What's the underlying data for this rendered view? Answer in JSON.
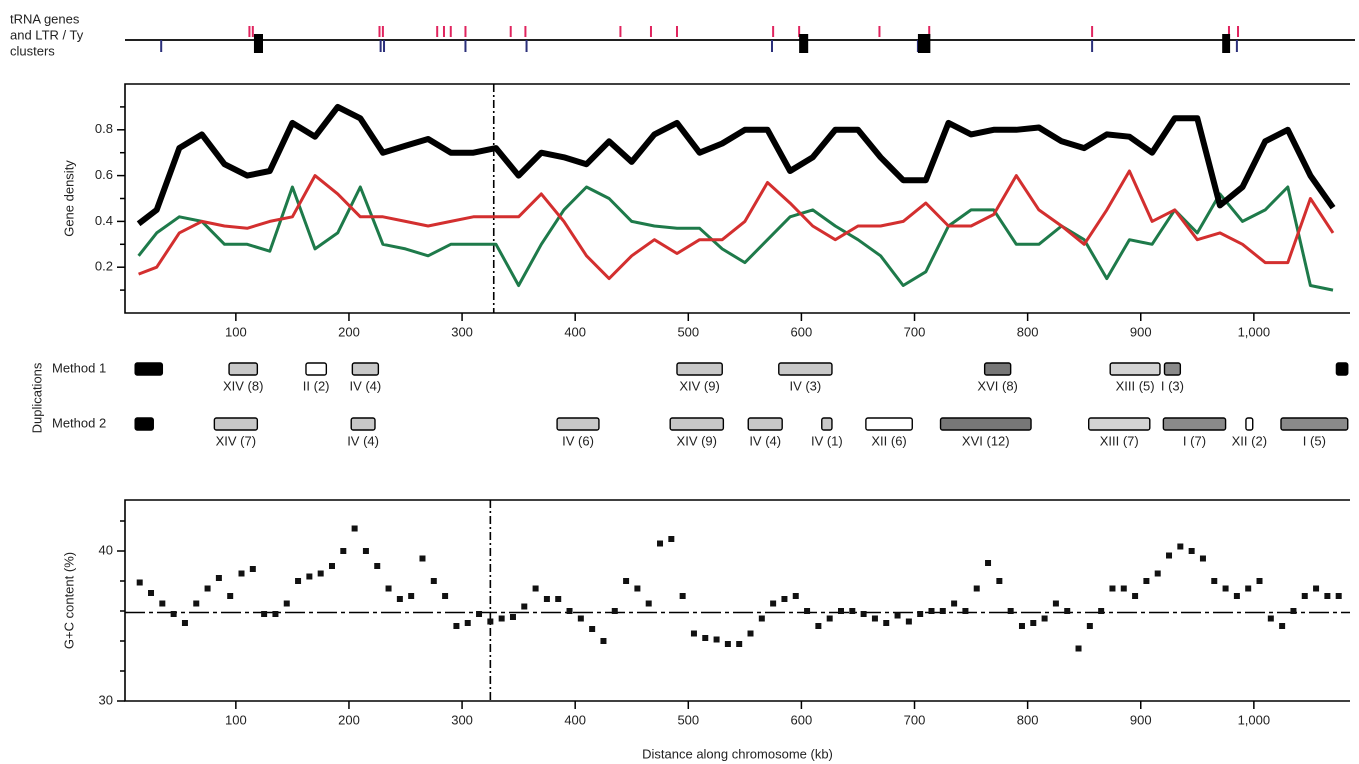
{
  "chart_data": [
    {
      "type": "track",
      "label": [
        "tRNA genes",
        "and LTR / Ty",
        "clusters"
      ],
      "xlim": [
        2,
        1085
      ],
      "series": [
        {
          "color": "#e0245e",
          "x": [
            112,
            115,
            227,
            230,
            278,
            284,
            290,
            303,
            343,
            356,
            440,
            467,
            490,
            575,
            598,
            669,
            713,
            857,
            978,
            986
          ]
        },
        {
          "color": "#2b2f7a",
          "x": [
            34,
            228,
            231,
            303,
            357,
            574,
            703,
            857,
            985
          ]
        }
      ],
      "clusters": [
        {
          "color": "#000000",
          "ranges": [
            [
              116,
              124
            ],
            [
              598,
              606
            ],
            [
              703,
              714
            ],
            [
              972,
              979
            ]
          ]
        }
      ]
    },
    {
      "type": "line",
      "ylabel": "Gene density",
      "xlim": [
        2,
        1085
      ],
      "ylim": [
        0,
        1
      ],
      "yticks": [
        0.2,
        0.4,
        0.6,
        0.8
      ],
      "yminorticks": [
        0.1,
        0.3,
        0.5,
        0.7,
        0.9
      ],
      "xticks": [
        100,
        200,
        300,
        400,
        500,
        600,
        700,
        800,
        900,
        {
          "value": 1000,
          "label": "1,000"
        }
      ],
      "vline": 328,
      "x": [
        14,
        30,
        50,
        70,
        90,
        110,
        130,
        150,
        170,
        190,
        210,
        230,
        250,
        270,
        290,
        310,
        330,
        350,
        370,
        390,
        410,
        430,
        450,
        470,
        490,
        510,
        530,
        550,
        570,
        590,
        610,
        630,
        650,
        670,
        690,
        710,
        730,
        750,
        770,
        790,
        810,
        830,
        850,
        870,
        890,
        910,
        930,
        950,
        970,
        990,
        1010,
        1030,
        1050,
        1070
      ],
      "series": [
        {
          "color": "#000000",
          "values": [
            0.39,
            0.45,
            0.72,
            0.78,
            0.65,
            0.6,
            0.62,
            0.83,
            0.77,
            0.9,
            0.85,
            0.7,
            0.73,
            0.76,
            0.7,
            0.7,
            0.72,
            0.6,
            0.7,
            0.68,
            0.65,
            0.75,
            0.66,
            0.78,
            0.83,
            0.7,
            0.74,
            0.8,
            0.8,
            0.62,
            0.68,
            0.8,
            0.8,
            0.68,
            0.58,
            0.58,
            0.83,
            0.78,
            0.8,
            0.8,
            0.81,
            0.75,
            0.72,
            0.78,
            0.77,
            0.7,
            0.85,
            0.85,
            0.47,
            0.55,
            0.75,
            0.8,
            0.6,
            0.46
          ]
        },
        {
          "color": "#d32f2f",
          "values": [
            0.17,
            0.2,
            0.35,
            0.4,
            0.38,
            0.37,
            0.4,
            0.42,
            0.6,
            0.52,
            0.42,
            0.42,
            0.4,
            0.38,
            0.4,
            0.42,
            0.42,
            0.42,
            0.52,
            0.4,
            0.25,
            0.15,
            0.25,
            0.32,
            0.26,
            0.32,
            0.32,
            0.4,
            0.57,
            0.48,
            0.38,
            0.32,
            0.38,
            0.38,
            0.4,
            0.48,
            0.38,
            0.38,
            0.43,
            0.6,
            0.45,
            0.38,
            0.3,
            0.45,
            0.62,
            0.4,
            0.45,
            0.32,
            0.35,
            0.3,
            0.22,
            0.22,
            0.5,
            0.35
          ]
        },
        {
          "color": "#1e7a4a",
          "values": [
            0.25,
            0.35,
            0.42,
            0.4,
            0.3,
            0.3,
            0.27,
            0.55,
            0.28,
            0.35,
            0.55,
            0.3,
            0.28,
            0.25,
            0.3,
            0.3,
            0.3,
            0.12,
            0.3,
            0.45,
            0.55,
            0.5,
            0.4,
            0.38,
            0.37,
            0.37,
            0.28,
            0.22,
            0.32,
            0.42,
            0.45,
            0.38,
            0.32,
            0.25,
            0.12,
            0.18,
            0.38,
            0.45,
            0.45,
            0.3,
            0.3,
            0.38,
            0.32,
            0.15,
            0.32,
            0.3,
            0.45,
            0.35,
            0.52,
            0.4,
            0.45,
            0.55,
            0.12,
            0.1
          ]
        }
      ]
    },
    {
      "type": "blocks",
      "ylabel": "Duplications",
      "xlim": [
        2,
        1085
      ],
      "rows": [
        {
          "name": "Method 1",
          "blocks": [
            {
              "start": 11,
              "end": 35,
              "color": "#000000"
            },
            {
              "start": 94,
              "end": 119,
              "color": "#c8c8c8",
              "label": "XIV (8)"
            },
            {
              "start": 162,
              "end": 180,
              "color": "#ffffff",
              "label": "II (2)"
            },
            {
              "start": 203,
              "end": 226,
              "color": "#c8c8c8",
              "label": "IV (4)"
            },
            {
              "start": 490,
              "end": 530,
              "color": "#c8c8c8",
              "label": "XIV (9)"
            },
            {
              "start": 580,
              "end": 627,
              "color": "#c8c8c8",
              "label": "IV (3)"
            },
            {
              "start": 762,
              "end": 785,
              "color": "#777777",
              "label": "XVI (8)"
            },
            {
              "start": 873,
              "end": 917,
              "color": "#d4d4d4",
              "label": "XIII (5)"
            },
            {
              "start": 921,
              "end": 935,
              "color": "#8a8a8a",
              "label": "I (3)"
            },
            {
              "start": 1073,
              "end": 1083,
              "color": "#000000"
            }
          ]
        },
        {
          "name": "Method 2",
          "blocks": [
            {
              "start": 11,
              "end": 27,
              "color": "#000000"
            },
            {
              "start": 81,
              "end": 119,
              "color": "#c8c8c8",
              "label": "XIV (7)"
            },
            {
              "start": 202,
              "end": 223,
              "color": "#c8c8c8",
              "label": "IV (4)"
            },
            {
              "start": 384,
              "end": 421,
              "color": "#c8c8c8",
              "label": "IV (6)"
            },
            {
              "start": 484,
              "end": 531,
              "color": "#c8c8c8",
              "label": "XIV (9)"
            },
            {
              "start": 553,
              "end": 583,
              "color": "#c8c8c8",
              "label": "IV (4)"
            },
            {
              "start": 618,
              "end": 627,
              "color": "#c8c8c8",
              "label": "IV (1)"
            },
            {
              "start": 657,
              "end": 698,
              "color": "#ffffff",
              "label": "XII (6)"
            },
            {
              "start": 723,
              "end": 803,
              "color": "#777777",
              "label": "XVI (12)"
            },
            {
              "start": 854,
              "end": 908,
              "color": "#d4d4d4",
              "label": "XIII (7)"
            },
            {
              "start": 920,
              "end": 975,
              "color": "#8a8a8a",
              "label": "I (7)"
            },
            {
              "start": 993,
              "end": 999,
              "color": "#ffffff",
              "label": "XII (2)"
            },
            {
              "start": 1024,
              "end": 1083,
              "color": "#8a8a8a",
              "label": "I (5)"
            }
          ]
        }
      ]
    },
    {
      "type": "scatter",
      "ylabel": "G+C content (%)",
      "xlabel": "Distance along chromosome (kb)",
      "xlim": [
        2,
        1085
      ],
      "ylim": [
        30,
        43.4
      ],
      "yticks": [
        30,
        40
      ],
      "yminorticks": [
        32,
        34,
        36,
        38,
        42
      ],
      "xticks": [
        100,
        200,
        300,
        400,
        500,
        600,
        700,
        800,
        900,
        {
          "value": 1000,
          "label": "1,000"
        }
      ],
      "vline": 325,
      "hline": 35.9,
      "color": "#111111",
      "x": [
        15,
        25,
        35,
        45,
        55,
        65,
        75,
        85,
        95,
        105,
        115,
        125,
        135,
        145,
        155,
        165,
        175,
        185,
        195,
        205,
        215,
        225,
        235,
        245,
        255,
        265,
        275,
        285,
        295,
        305,
        315,
        325,
        335,
        345,
        355,
        365,
        375,
        385,
        395,
        405,
        415,
        425,
        435,
        445,
        455,
        465,
        475,
        485,
        495,
        505,
        515,
        525,
        535,
        545,
        555,
        565,
        575,
        585,
        595,
        605,
        615,
        625,
        635,
        645,
        655,
        665,
        675,
        685,
        695,
        705,
        715,
        725,
        735,
        745,
        755,
        765,
        775,
        785,
        795,
        805,
        815,
        825,
        835,
        845,
        855,
        865,
        875,
        885,
        895,
        905,
        915,
        925,
        935,
        945,
        955,
        965,
        975,
        985,
        995,
        1005,
        1015,
        1025,
        1035,
        1045,
        1055,
        1065,
        1075
      ],
      "values": [
        37.9,
        37.2,
        36.5,
        35.8,
        35.2,
        36.5,
        37.5,
        38.2,
        37,
        38.5,
        38.8,
        35.8,
        35.8,
        36.5,
        38,
        38.3,
        38.5,
        39,
        40,
        41.5,
        40,
        39,
        37.5,
        36.8,
        37,
        39.5,
        38,
        37,
        35,
        35.2,
        35.8,
        35.3,
        35.5,
        35.6,
        36.3,
        37.5,
        36.8,
        36.8,
        36,
        35.5,
        34.8,
        34,
        36,
        38,
        37.5,
        36.5,
        40.5,
        40.8,
        37,
        34.5,
        34.2,
        34.1,
        33.8,
        33.8,
        34.5,
        35.5,
        36.5,
        36.8,
        37,
        36,
        35,
        35.5,
        36,
        36,
        35.8,
        35.5,
        35.2,
        35.7,
        35.3,
        35.8,
        36,
        36,
        36.5,
        36,
        37.5,
        39.2,
        38,
        36,
        35,
        35.2,
        35.5,
        36.5,
        36,
        33.5,
        35,
        36,
        37.5,
        37.5,
        37,
        38,
        38.5,
        39.7,
        40.3,
        40,
        39.5,
        38,
        37.5,
        37,
        37.5,
        38,
        35.5,
        35,
        36,
        37,
        37.5,
        37,
        37
      ]
    }
  ]
}
